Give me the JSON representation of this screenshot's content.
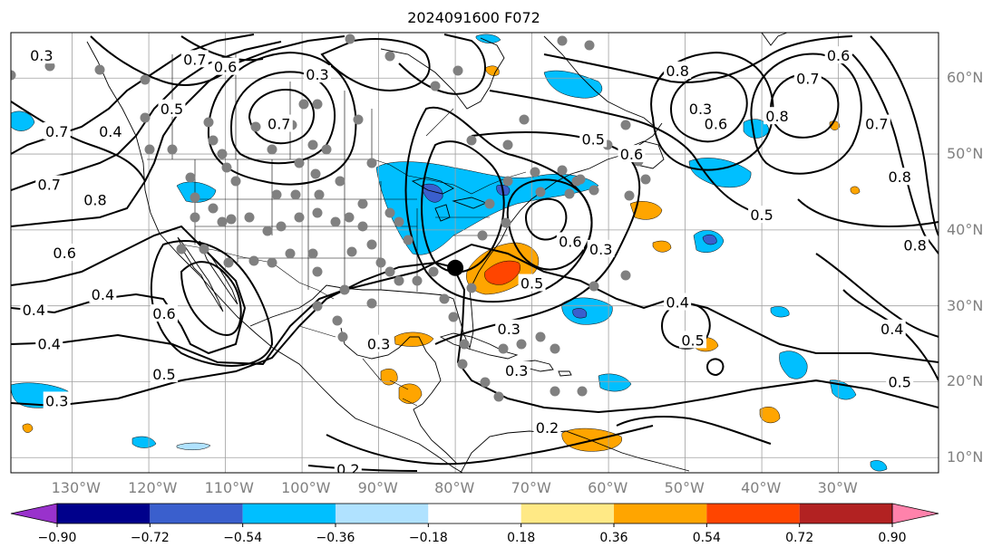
{
  "title": "2024091600 F072",
  "map": {
    "lat_labels": [
      {
        "text": "60°N",
        "lat": 60
      },
      {
        "text": "50°N",
        "lat": 50
      },
      {
        "text": "40°N",
        "lat": 40
      },
      {
        "text": "30°N",
        "lat": 30
      },
      {
        "text": "20°N",
        "lat": 20
      },
      {
        "text": "10°N",
        "lat": 10
      }
    ],
    "lon_labels": [
      {
        "text": "130°W",
        "lon": -130
      },
      {
        "text": "120°W",
        "lon": -120
      },
      {
        "text": "110°W",
        "lon": -110
      },
      {
        "text": "100°W",
        "lon": -100
      },
      {
        "text": "90°W",
        "lon": -90
      },
      {
        "text": "80°W",
        "lon": -80
      },
      {
        "text": "70°W",
        "lon": -70
      },
      {
        "text": "60°W",
        "lon": -60
      },
      {
        "text": "50°W",
        "lon": -50
      },
      {
        "text": "40°W",
        "lon": -40
      },
      {
        "text": "30°W",
        "lon": -30
      }
    ],
    "extent": {
      "lon_min": -138,
      "lon_max": -17,
      "lat_min": 8,
      "lat_max": 66
    },
    "grid_color": "#a0a0a0",
    "contour_labels": [
      {
        "text": "0.3",
        "lon": -134,
        "lat": 63
      },
      {
        "text": "0.7",
        "lon": -114,
        "lat": 62.5
      },
      {
        "text": "0.6",
        "lon": -110,
        "lat": 61.5
      },
      {
        "text": "0.5",
        "lon": -117,
        "lat": 56
      },
      {
        "text": "0.7",
        "lon": -103,
        "lat": 54
      },
      {
        "text": "0.3",
        "lon": -98,
        "lat": 60.5
      },
      {
        "text": "0.7",
        "lon": -132,
        "lat": 53
      },
      {
        "text": "0.4",
        "lon": -125,
        "lat": 53
      },
      {
        "text": "0.7",
        "lon": -133,
        "lat": 46
      },
      {
        "text": "0.8",
        "lon": -127,
        "lat": 44
      },
      {
        "text": "0.6",
        "lon": -131,
        "lat": 37
      },
      {
        "text": "0.4",
        "lon": -126,
        "lat": 31.5
      },
      {
        "text": "0.4",
        "lon": -135,
        "lat": 29.5
      },
      {
        "text": "0.4",
        "lon": -133,
        "lat": 25
      },
      {
        "text": "0.6",
        "lon": -118,
        "lat": 29
      },
      {
        "text": "0.5",
        "lon": -118,
        "lat": 21
      },
      {
        "text": "0.3",
        "lon": -132,
        "lat": 17.5
      },
      {
        "text": "0.3",
        "lon": -90,
        "lat": 25
      },
      {
        "text": "0.2",
        "lon": -94,
        "lat": 8.5
      },
      {
        "text": "0.2",
        "lon": -68,
        "lat": 14
      },
      {
        "text": "0.3",
        "lon": -73,
        "lat": 27
      },
      {
        "text": "0.3",
        "lon": -72,
        "lat": 21.5
      },
      {
        "text": "0.5",
        "lon": -70,
        "lat": 33
      },
      {
        "text": "0.6",
        "lon": -65,
        "lat": 38.5
      },
      {
        "text": "0.3",
        "lon": -61,
        "lat": 37.5
      },
      {
        "text": "0.4",
        "lon": -51,
        "lat": 30.5
      },
      {
        "text": "0.5",
        "lon": -49,
        "lat": 25.5
      },
      {
        "text": "0.5",
        "lon": -62,
        "lat": 52
      },
      {
        "text": "0.6",
        "lon": -57,
        "lat": 50
      },
      {
        "text": "0.8",
        "lon": -51,
        "lat": 61
      },
      {
        "text": "0.3",
        "lon": -48,
        "lat": 56
      },
      {
        "text": "0.6",
        "lon": -46,
        "lat": 54
      },
      {
        "text": "0.8",
        "lon": -38,
        "lat": 55
      },
      {
        "text": "0.7",
        "lon": -34,
        "lat": 60
      },
      {
        "text": "0.6",
        "lon": -30,
        "lat": 63
      },
      {
        "text": "0.7",
        "lon": -25,
        "lat": 54
      },
      {
        "text": "0.8",
        "lon": -22,
        "lat": 47
      },
      {
        "text": "0.5",
        "lon": -40,
        "lat": 42
      },
      {
        "text": "0.8",
        "lon": -20,
        "lat": 38
      },
      {
        "text": "0.4",
        "lon": -23,
        "lat": 27
      },
      {
        "text": "0.5",
        "lon": -22,
        "lat": 20
      }
    ]
  },
  "colorbar": {
    "colors": [
      "#9932cc",
      "#00008b",
      "#3a5fcd",
      "#00bfff",
      "#b0e2ff",
      "#ffffff",
      "#ffe985",
      "#ffa500",
      "#ff4500",
      "#b22222",
      "#ff82ab"
    ],
    "tick_labels": [
      "−0.90",
      "−0.72",
      "−0.54",
      "−0.36",
      "−0.18",
      "0.18",
      "0.36",
      "0.54",
      "0.72",
      "0.90"
    ]
  }
}
